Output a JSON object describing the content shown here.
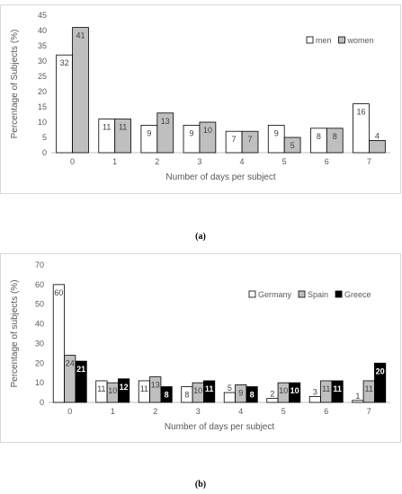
{
  "chart_data": [
    {
      "type": "bar",
      "caption": "(a)",
      "categories": [
        "0",
        "1",
        "2",
        "3",
        "4",
        "5",
        "6",
        "7"
      ],
      "series": [
        {
          "name": "men",
          "values": [
            32,
            11,
            9,
            9,
            7,
            9,
            8,
            16
          ],
          "labels": [
            "32",
            "11",
            "9",
            "9",
            "7",
            "9",
            "8",
            "16"
          ],
          "color": "#ffffff"
        },
        {
          "name": "women",
          "values": [
            41,
            11,
            13,
            10,
            7,
            5,
            8,
            4
          ],
          "labels": [
            "41",
            "11",
            "13",
            "10",
            "7",
            "5",
            "8",
            "4"
          ],
          "color": "#bfbfbf"
        }
      ],
      "xlabel": "Number of days per subject",
      "ylabel": "Percentage of Subjects (%)",
      "ylim": [
        0,
        45
      ],
      "yticks": [
        0,
        5,
        10,
        15,
        20,
        25,
        30,
        35,
        40,
        45
      ],
      "ytick_labels": [
        "0",
        "5",
        "10",
        "15",
        "20",
        "25",
        "30",
        "35",
        "40",
        "45"
      ],
      "legend": "top-right",
      "grid": false
    },
    {
      "type": "bar",
      "caption": "(b)",
      "categories": [
        "0",
        "1",
        "2",
        "3",
        "4",
        "5",
        "6",
        "7"
      ],
      "series": [
        {
          "name": "Germany",
          "values": [
            60,
            11,
            11,
            8,
            5,
            2,
            3,
            1
          ],
          "labels": [
            "60",
            "11",
            "11",
            "8",
            "5",
            "2",
            "3",
            "1"
          ],
          "color": "#ffffff"
        },
        {
          "name": "Spain",
          "values": [
            24,
            10,
            13,
            10,
            9,
            10,
            11,
            11
          ],
          "labels": [
            "24",
            "10",
            "13",
            "10",
            "9",
            "10",
            "11",
            "11"
          ],
          "color": "#bfbfbf"
        },
        {
          "name": "Greece",
          "values": [
            21,
            12,
            8,
            11,
            8,
            10,
            11,
            20
          ],
          "labels": [
            "21",
            "12",
            "8",
            "11",
            "8",
            "10",
            "11",
            "20"
          ],
          "color": "#000000"
        }
      ],
      "xlabel": "Number of days per subject",
      "ylabel": "Percentage of subjects (%)",
      "ylim": [
        0,
        70
      ],
      "yticks": [
        0,
        10,
        20,
        30,
        40,
        50,
        60,
        70
      ],
      "ytick_labels": [
        "0",
        "10",
        "20",
        "30",
        "40",
        "50",
        "60",
        "70"
      ],
      "legend": "top-right",
      "grid": false
    }
  ]
}
